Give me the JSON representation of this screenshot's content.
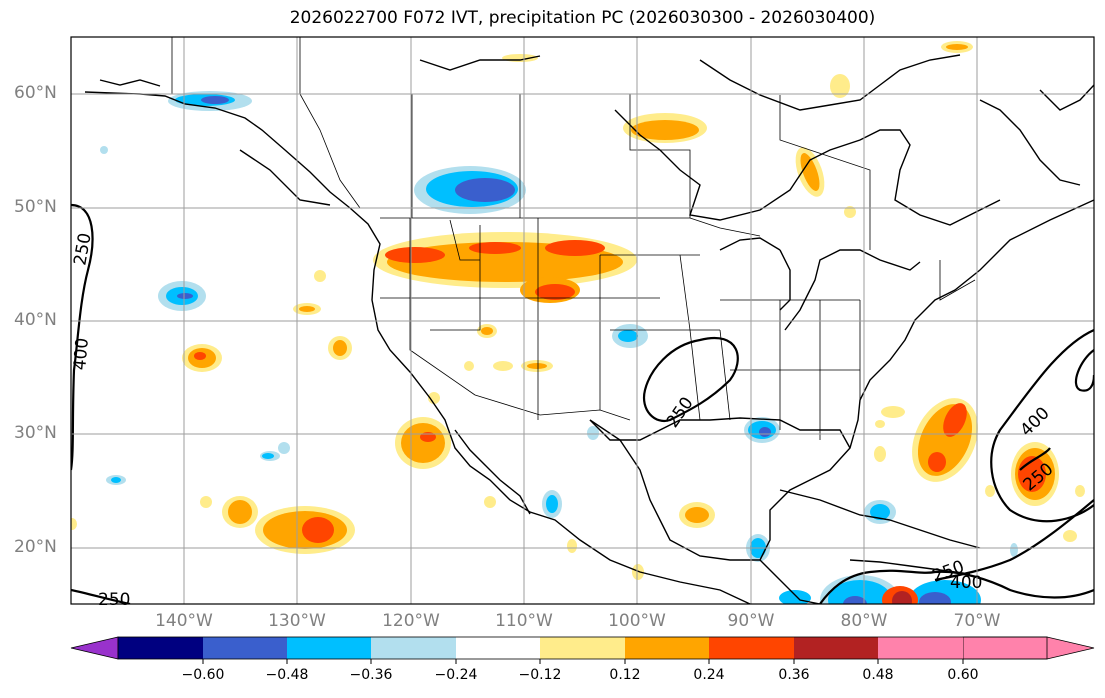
{
  "title": "2026022700 F072 IVT, precipitation PC (2026030300 - 2026030400)",
  "lat_labels": [
    "60°N",
    "50°N",
    "40°N",
    "30°N",
    "20°N"
  ],
  "lon_labels": [
    "140°W",
    "130°W",
    "120°W",
    "110°W",
    "100°W",
    "90°W",
    "80°W",
    "70°W"
  ],
  "contour_labels": [
    "250",
    "400",
    "250",
    "400",
    "250",
    "250",
    "400",
    "250"
  ],
  "colorbar": {
    "tick_labels": [
      "−0.60",
      "−0.48",
      "−0.36",
      "−0.24",
      "−0.12",
      "0.12",
      "0.24",
      "0.36",
      "0.48",
      "0.60"
    ],
    "colors": [
      "#9932cc",
      "#000080",
      "#3a5fcd",
      "#00bfff",
      "#b2dfee",
      "#ffffff",
      "#ffec8b",
      "#ffa500",
      "#ff4500",
      "#b22222",
      "#ff82ab"
    ]
  }
}
